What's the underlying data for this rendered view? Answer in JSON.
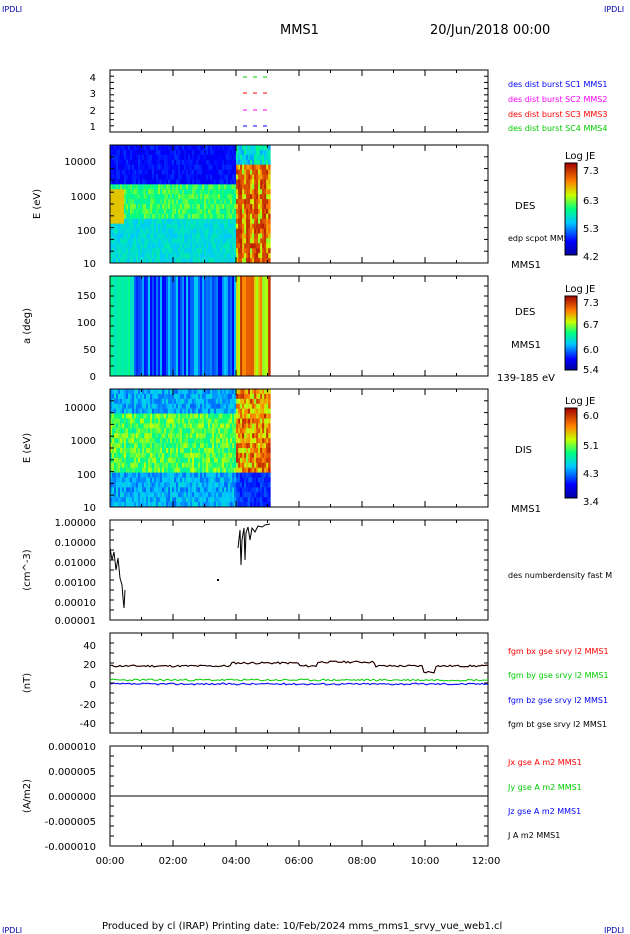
{
  "header": {
    "corner_tl": "IPDLI",
    "corner_tr": "IPDLI",
    "corner_bl": "IPDLI",
    "corner_br": "IPDLI",
    "title": "MMS1",
    "date": "20/Jun/2018 00:00"
  },
  "footer": {
    "text": "Produced by cl (IRAP)   Printing date: 10/Feb/2024   mms_mms1_srvy_vue_web1.cl"
  },
  "x_axis": {
    "ticks": [
      "00:00",
      "02:00",
      "04:00",
      "06:00",
      "08:00",
      "10:00",
      "12:00"
    ]
  },
  "colors": {
    "blue": "#0000ff",
    "magenta": "#ff00ff",
    "red": "#ff0000",
    "green": "#00cc00",
    "black": "#000000"
  },
  "chart_data": [
    {
      "type": "scatter",
      "panel": "burst-availability",
      "yticks": [
        "4",
        "3",
        "2",
        "1"
      ],
      "series": [
        {
          "name": "des dist burst SC1 MMS1",
          "color": "#0000ff",
          "y": 1,
          "x_start": "04:15",
          "x_end": "05:05"
        },
        {
          "name": "des dist burst SC2 MMS2",
          "color": "#ff00ff",
          "y": 2,
          "x_start": "04:15",
          "x_end": "05:05"
        },
        {
          "name": "des dist burst SC3 MMS3",
          "color": "#ff0000",
          "y": 3,
          "x_start": "04:15",
          "x_end": "05:05"
        },
        {
          "name": "des dist burst SC4 MMS4",
          "color": "#00cc00",
          "y": 4,
          "x_start": "04:15",
          "x_end": "05:05"
        }
      ]
    },
    {
      "type": "heatmap",
      "panel": "des-energy",
      "ylabel": "E (eV)",
      "yticks": [
        "10000",
        "1000",
        "100",
        "10"
      ],
      "label": "DES",
      "sublabel": "edp scpot MMS1",
      "bottom_label": "MMS1",
      "colorbar": {
        "title": "Log JE",
        "ticks": [
          "7.3",
          "6.3",
          "5.3",
          "4.2"
        ]
      },
      "data_end": "05:05"
    },
    {
      "type": "heatmap",
      "panel": "des-pitch-angle",
      "ylabel": "a (deg)",
      "yticks": [
        "150",
        "100",
        "50",
        "0"
      ],
      "label": "DES",
      "sublabel": "MMS1",
      "bottom_label": "139-185 eV",
      "colorbar": {
        "title": "Log JE",
        "ticks": [
          "7.3",
          "6.7",
          "6.0",
          "5.4"
        ]
      },
      "data_end": "05:05"
    },
    {
      "type": "heatmap",
      "panel": "dis-energy",
      "ylabel": "E (eV)",
      "yticks": [
        "10000",
        "1000",
        "100",
        "10"
      ],
      "label": "DIS",
      "bottom_label": "MMS1",
      "colorbar": {
        "title": "Log JE",
        "ticks": [
          "6.0",
          "5.1",
          "4.3",
          "3.4"
        ]
      },
      "data_end": "05:05"
    },
    {
      "type": "line",
      "panel": "density",
      "ylabel": "(cm^-3)",
      "yticks": [
        "1.00000",
        "0.10000",
        "0.01000",
        "0.00100",
        "0.00010",
        "0.00001"
      ],
      "yscale": "log",
      "ylim": [
        1e-05,
        1.0
      ],
      "series": [
        {
          "name": "des numberdensity fast M",
          "color": "#000000"
        }
      ]
    },
    {
      "type": "line",
      "panel": "magnetic-field",
      "ylabel": "(nT)",
      "yticks": [
        "40",
        "20",
        "0",
        "-20",
        "-40"
      ],
      "ylim": [
        -50,
        50
      ],
      "series": [
        {
          "name": "fgm bx gse srvy l2 MMS1",
          "color": "#ff0000",
          "approx_value": 18
        },
        {
          "name": "fgm by gse srvy l2 MMS1",
          "color": "#00cc00",
          "approx_value": 4
        },
        {
          "name": "fgm bz gse srvy l2 MMS1",
          "color": "#0000ff",
          "approx_value": 0
        },
        {
          "name": "fgm bt gse srvy l2 MMS1",
          "color": "#000000",
          "approx_value": 18
        }
      ]
    },
    {
      "type": "line",
      "panel": "current",
      "ylabel": "(A/m2)",
      "yticks": [
        "0.000010",
        "0.000005",
        "0.000000",
        "-0.000005",
        "-0.000010"
      ],
      "ylim": [
        -1e-05,
        1e-05
      ],
      "series": [
        {
          "name": "Jx gse A m2 MMS1",
          "color": "#ff0000"
        },
        {
          "name": "Jy gse A m2 MMS1",
          "color": "#00cc00"
        },
        {
          "name": "Jz gse A m2 MMS1",
          "color": "#0000ff"
        },
        {
          "name": "J A m2 MMS1",
          "color": "#000000"
        }
      ]
    }
  ]
}
